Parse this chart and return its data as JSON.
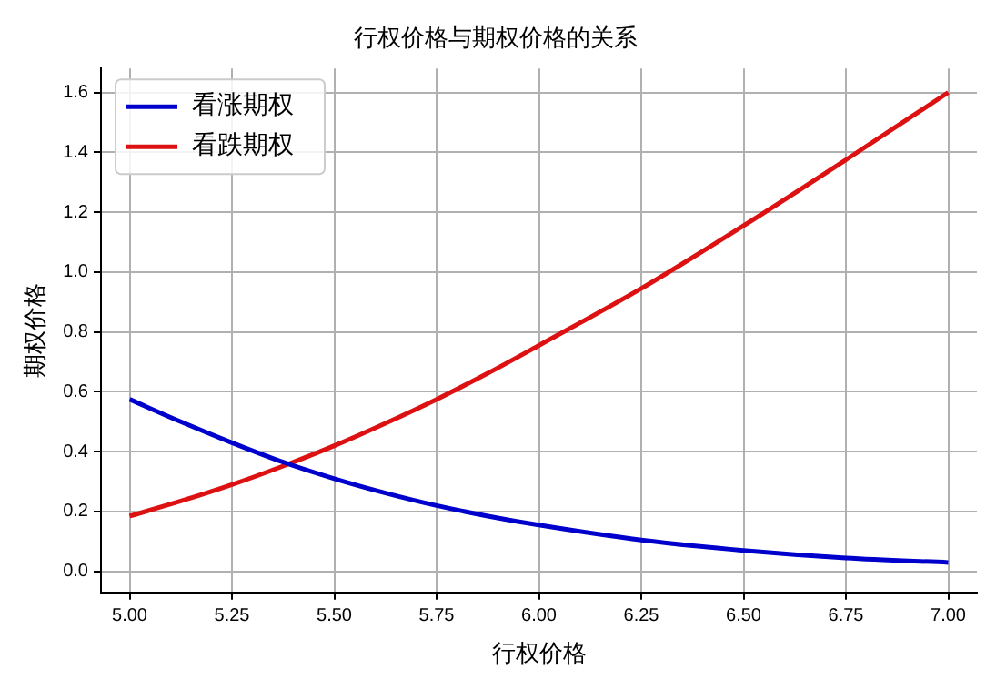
{
  "chart_data": {
    "type": "line",
    "title": "行权价格与期权价格的关系",
    "xlabel": "行权价格",
    "ylabel": "期权价格",
    "x": [
      5.0,
      5.125,
      5.25,
      5.375,
      5.5,
      5.625,
      5.75,
      5.875,
      6.0,
      6.25,
      6.5,
      6.75,
      7.0
    ],
    "series": [
      {
        "name": "看涨期权",
        "color": "#0000cc",
        "values": [
          0.575,
          0.5,
          0.43,
          0.365,
          0.31,
          0.262,
          0.22,
          0.185,
          0.155,
          0.105,
          0.07,
          0.045,
          0.03
        ]
      },
      {
        "name": "看跌期权",
        "color": "#dd1111",
        "values": [
          0.185,
          0.235,
          0.29,
          0.352,
          0.42,
          0.495,
          0.575,
          0.662,
          0.755,
          0.945,
          1.155,
          1.375,
          1.6
        ]
      }
    ],
    "xlim": [
      4.93,
      7.07
    ],
    "xticks": [
      {
        "value": 5,
        "label": "5.00"
      },
      5.25,
      {
        "value": 5.5,
        "label": "5.50"
      },
      5.75,
      {
        "value": 6,
        "label": "6.00"
      },
      6.25,
      {
        "value": 6.5,
        "label": "6.50"
      },
      6.75,
      {
        "value": 7,
        "label": "7.00"
      }
    ],
    "ylim": [
      -0.07,
      1.68
    ],
    "yticks": [
      {
        "value": 0,
        "label": "0.0"
      },
      0.2,
      0.4,
      0.6,
      0.8,
      {
        "value": 1,
        "label": "1.0"
      },
      1.2,
      1.4,
      1.6
    ],
    "grid": true,
    "legend": "top left",
    "marker": "none",
    "line_style": "solid"
  }
}
